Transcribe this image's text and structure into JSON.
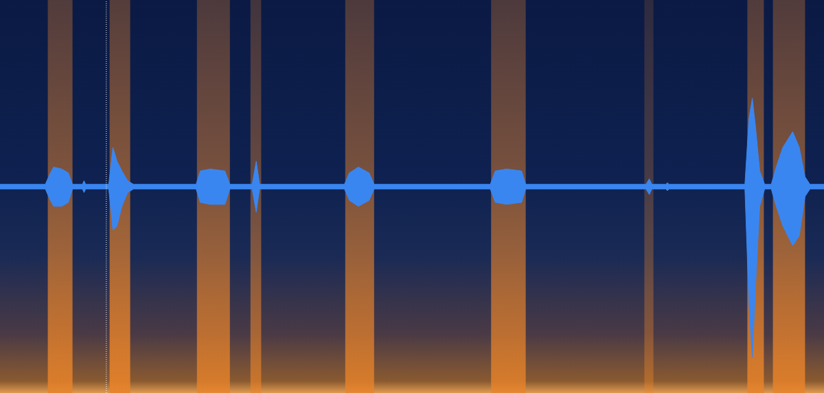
{
  "chart_data": {
    "type": "spectrogram",
    "xlim": [
      0,
      100
    ],
    "ylim": [
      -1.05,
      0.95
    ],
    "tick_labels": false,
    "grid": false,
    "cursor_x": 12.9,
    "bands": {
      "color": "#e8832a",
      "start": [
        5.8,
        13.3,
        23.9,
        30.4,
        41.9,
        59.6,
        78.2,
        90.7,
        93.8
      ],
      "end": [
        8.8,
        15.8,
        27.9,
        31.7,
        45.4,
        63.8,
        79.3,
        92.7,
        97.7
      ],
      "level": [
        0.9,
        0.95,
        0.85,
        0.7,
        0.85,
        0.85,
        0.45,
        0.9,
        0.9
      ]
    },
    "waveform": {
      "color": "#3a86f0",
      "x": [
        0,
        5.5,
        6.0,
        6.5,
        7.5,
        8.3,
        8.8,
        10.0,
        10.2,
        10.4,
        13.2,
        13.7,
        14.2,
        14.8,
        15.5,
        16.2,
        23.8,
        24.3,
        25.5,
        27.3,
        27.9,
        30.6,
        31.1,
        31.5,
        41.8,
        42.4,
        43.5,
        44.8,
        45.4,
        59.5,
        60.1,
        61.5,
        63.3,
        63.8,
        78.4,
        78.8,
        79.1,
        80.8,
        81.0,
        81.2,
        90.4,
        90.9,
        91.3,
        91.7,
        92.2,
        92.8,
        93.6,
        94.2,
        95.0,
        96.2,
        97.0,
        97.7,
        98.3,
        100
      ],
      "upper": [
        0.012,
        0.012,
        0.06,
        0.1,
        0.09,
        0.07,
        0.012,
        0.012,
        0.03,
        0.012,
        0.012,
        0.2,
        0.13,
        0.08,
        0.03,
        0.012,
        0.012,
        0.08,
        0.09,
        0.08,
        0.012,
        0.012,
        0.13,
        0.012,
        0.012,
        0.07,
        0.1,
        0.07,
        0.012,
        0.012,
        0.08,
        0.09,
        0.08,
        0.012,
        0.012,
        0.04,
        0.012,
        0.012,
        0.02,
        0.012,
        0.012,
        0.35,
        0.45,
        0.3,
        0.08,
        0.012,
        0.012,
        0.1,
        0.2,
        0.28,
        0.2,
        0.05,
        0.012,
        0.012
      ],
      "lower": [
        -0.012,
        -0.012,
        -0.06,
        -0.1,
        -0.1,
        -0.08,
        -0.012,
        -0.012,
        -0.03,
        -0.012,
        -0.012,
        -0.22,
        -0.2,
        -0.1,
        -0.03,
        -0.012,
        -0.012,
        -0.08,
        -0.09,
        -0.09,
        -0.012,
        -0.012,
        -0.13,
        -0.012,
        -0.012,
        -0.07,
        -0.1,
        -0.07,
        -0.012,
        -0.012,
        -0.08,
        -0.09,
        -0.08,
        -0.012,
        -0.012,
        -0.04,
        -0.012,
        -0.012,
        -0.02,
        -0.012,
        -0.012,
        -0.6,
        -0.87,
        -0.5,
        -0.1,
        -0.012,
        -0.012,
        -0.1,
        -0.2,
        -0.3,
        -0.25,
        -0.05,
        -0.012,
        -0.012
      ]
    }
  }
}
